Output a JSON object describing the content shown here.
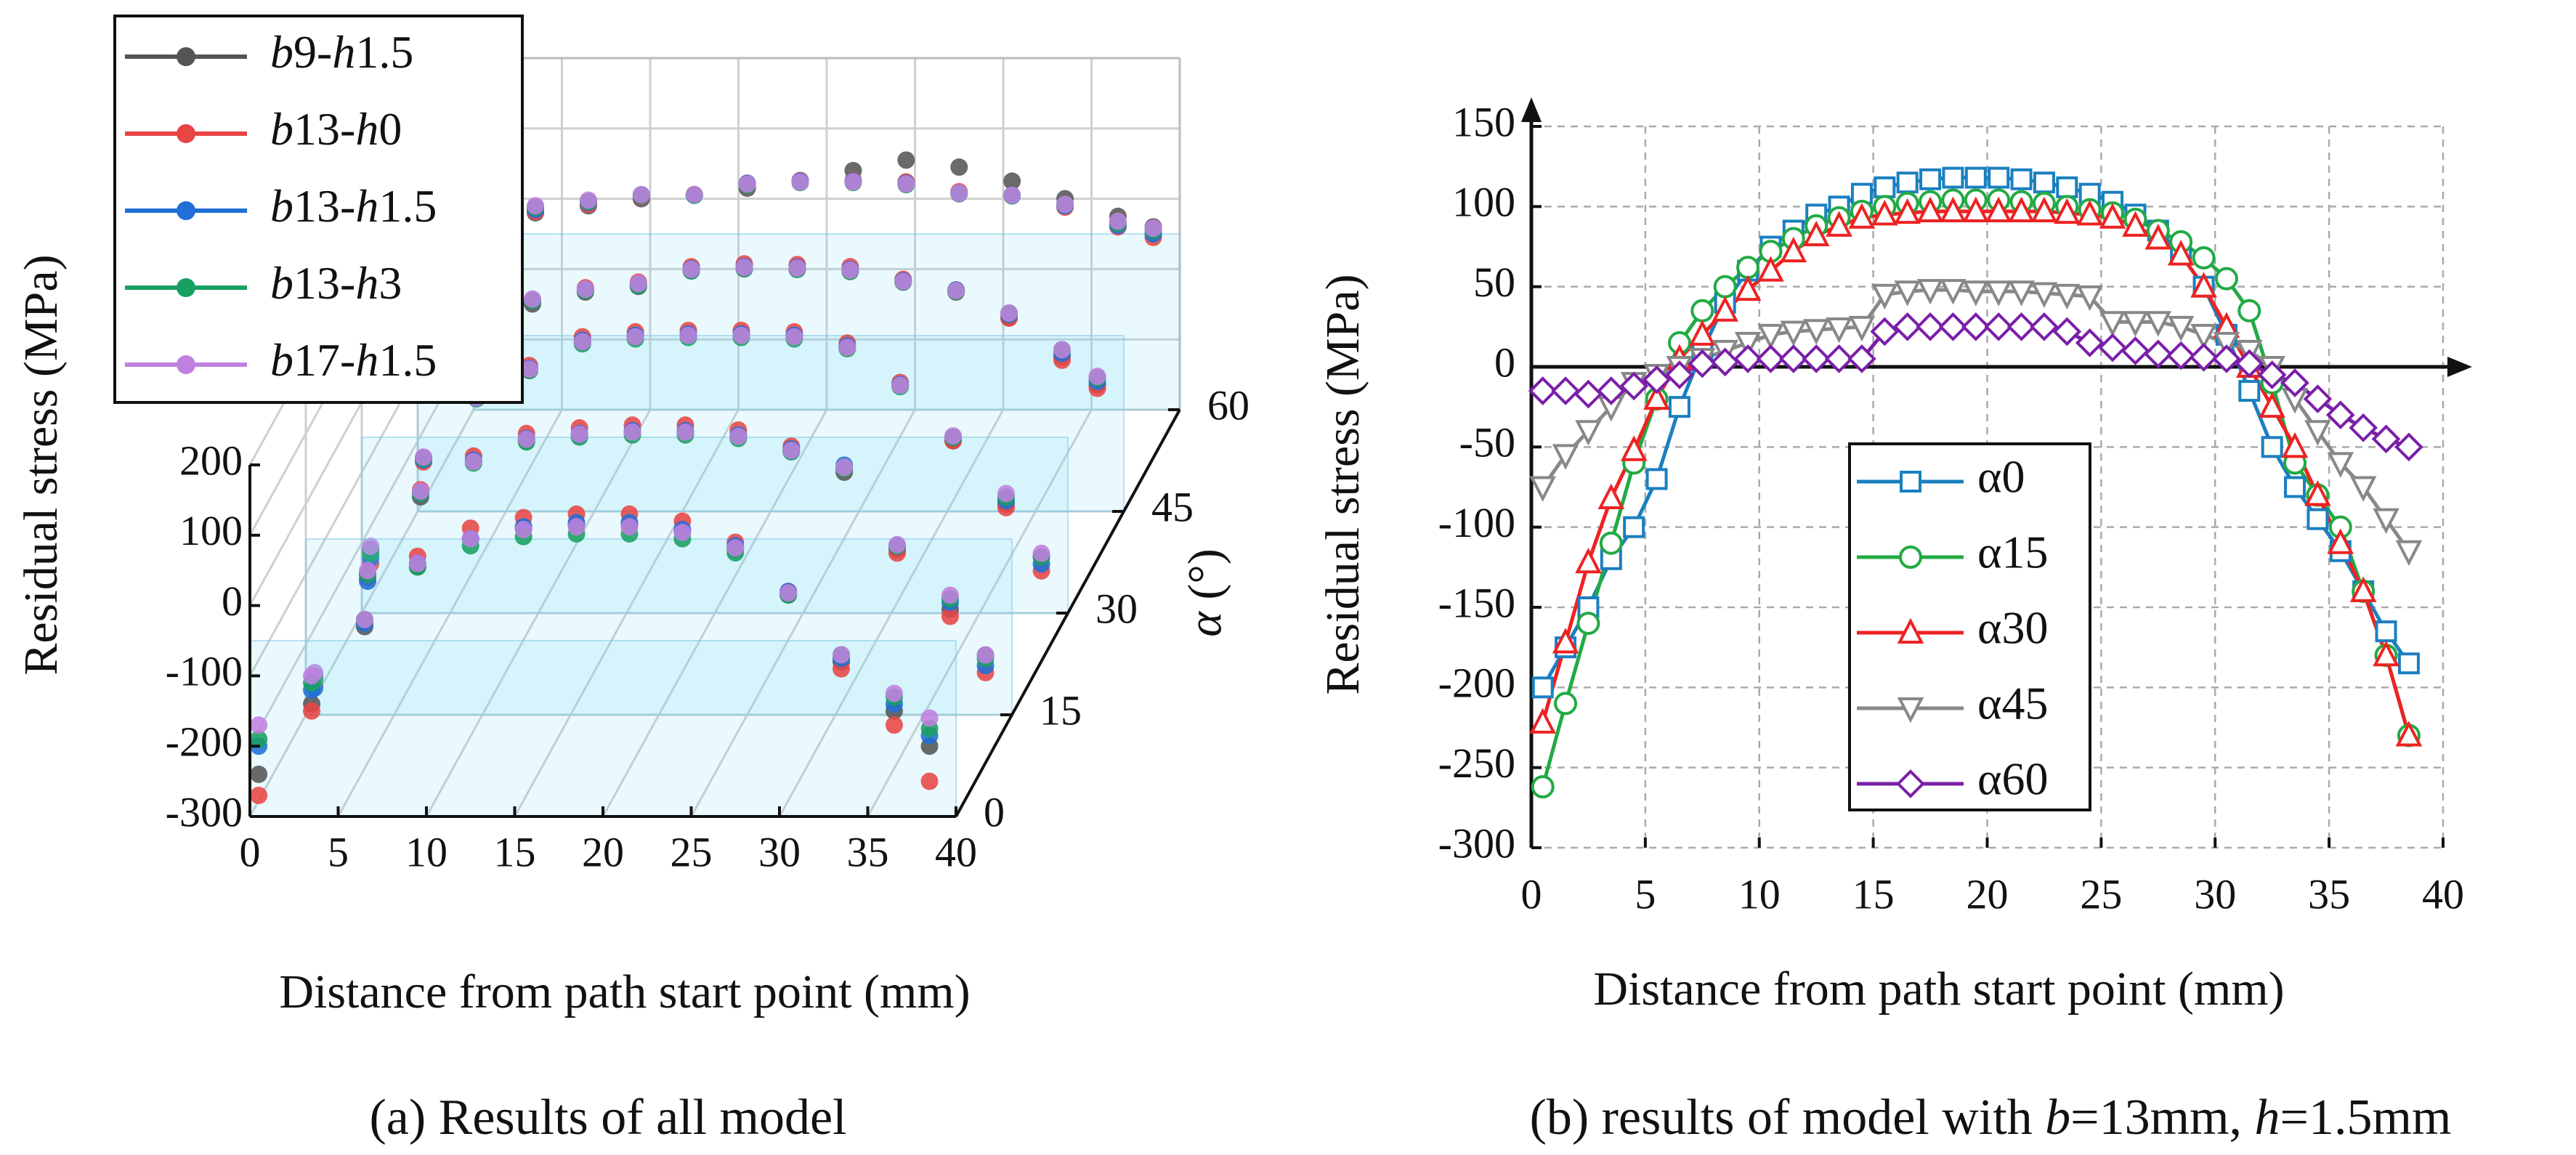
{
  "chart_data": [
    {
      "type": "scatter3d",
      "caption": "(a) Results of all model",
      "xlabel": "Distance from path start point (mm)",
      "ylabel": "Residual stress (MPa)",
      "zlabel": "α (°)",
      "x": [
        0.5,
        3.5,
        6.5,
        9.5,
        12.5,
        15.5,
        18.5,
        21.5,
        24.5,
        27.5,
        30.5,
        33.5,
        36.5,
        38.5
      ],
      "z": [
        0,
        15,
        30,
        45,
        60
      ],
      "xlim": [
        0,
        40
      ],
      "xticks": [
        0,
        5,
        10,
        15,
        20,
        25,
        30,
        35,
        40
      ],
      "ylim": [
        -300,
        200
      ],
      "yticks": [
        -300,
        -200,
        -100,
        0,
        100,
        200
      ],
      "zlim": [
        0,
        60
      ],
      "zticks": [
        0,
        15,
        30,
        45,
        60
      ],
      "grid": true,
      "legend": "upper left",
      "series": [
        {
          "name": "b9-h1.5",
          "color": "#555555",
          "values": [
            [
              -240,
              -140,
              -30,
              55,
              95,
              110,
              115,
              115,
              105,
              80,
              15,
              -80,
              -150,
              -200
            ],
            [
              -245,
              -100,
              10,
              60,
              90,
              98,
              102,
              102,
              96,
              75,
              45,
              -65,
              -150,
              -215
            ],
            [
              -210,
              -80,
              5,
              45,
              85,
              93,
              96,
              96,
              94,
              78,
              25,
              -55,
              -145,
              -220
            ],
            [
              -80,
              -30,
              -5,
              12,
              20,
              42,
              45,
              45,
              42,
              26,
              12,
              -25,
              -80,
              -120
            ],
            [
              -30,
              -20,
              -10,
              0,
              5,
              15,
              25,
              40,
              55,
              45,
              25,
              0,
              -25,
              -40
            ]
          ]
        },
        {
          "name": "b13-h0",
          "color": "#e84545",
          "values": [
            [
              -270,
              -150,
              -20,
              70,
              110,
              125,
              130,
              130,
              120,
              90,
              20,
              -90,
              -170,
              -250
            ],
            [
              -260,
              -105,
              20,
              68,
              100,
              108,
              112,
              112,
              105,
              82,
              50,
              -70,
              -160,
              -240
            ],
            [
              -230,
              -85,
              8,
              52,
              93,
              100,
              102,
              102,
              100,
              84,
              28,
              -55,
              -150,
              -240
            ],
            [
              -85,
              -30,
              0,
              18,
              26,
              48,
              52,
              51,
              48,
              30,
              15,
              -25,
              -85,
              -125
            ],
            [
              -20,
              -18,
              -8,
              4,
              6,
              22,
              26,
              26,
              24,
              10,
              5,
              -12,
              -40,
              -55
            ]
          ]
        },
        {
          "name": "b13-h1.5",
          "color": "#1f6fd6",
          "values": [
            [
              -200,
              -120,
              -25,
              60,
              95,
              112,
              118,
              118,
              108,
              85,
              20,
              -75,
              -140,
              -185
            ],
            [
              -262,
              -110,
              15,
              62,
              93,
              100,
              104,
              104,
              98,
              78,
              55,
              -60,
              -140,
              -230
            ],
            [
              -222,
              -82,
              5,
              48,
              88,
              95,
              97,
              97,
              95,
              80,
              25,
              -50,
              -140,
              -230
            ],
            [
              -75,
              -25,
              0,
              15,
              23,
              45,
              48,
              47,
              44,
              28,
              15,
              -20,
              -75,
              -115
            ],
            [
              -15,
              -15,
              -5,
              5,
              5,
              22,
              25,
              25,
              22,
              8,
              5,
              -10,
              -38,
              -50
            ]
          ]
        },
        {
          "name": "b13-h3",
          "color": "#18a060",
          "values": [
            [
              -190,
              -110,
              -20,
              55,
              85,
              98,
              102,
              102,
              95,
              75,
              15,
              -70,
              -130,
              -175
            ],
            [
              -250,
              -100,
              15,
              58,
              88,
              95,
              98,
              98,
              93,
              74,
              50,
              -60,
              -135,
              -220
            ],
            [
              -215,
              -80,
              5,
              45,
              83,
              90,
              92,
              92,
              90,
              76,
              22,
              -50,
              -135,
              -220
            ],
            [
              -70,
              -22,
              0,
              14,
              21,
              42,
              45,
              44,
              41,
              26,
              13,
              -18,
              -70,
              -110
            ],
            [
              -12,
              -12,
              -4,
              5,
              5,
              20,
              23,
              23,
              20,
              7,
              4,
              -8,
              -35,
              -45
            ]
          ]
        },
        {
          "name": "b17-h1.5",
          "color": "#c080e0",
          "values": [
            [
              -170,
              -100,
              -20,
              60,
              95,
              108,
              112,
              112,
              104,
              82,
              18,
              -70,
              -125,
              -160
            ],
            [
              -240,
              -95,
              18,
              60,
              92,
              99,
              102,
              102,
              96,
              76,
              52,
              -58,
              -130,
              -215
            ],
            [
              -205,
              -78,
              6,
              47,
              86,
              93,
              95,
              95,
              93,
              78,
              24,
              -48,
              -130,
              -215
            ],
            [
              -70,
              -22,
              2,
              16,
              24,
              44,
              47,
              46,
              43,
              27,
              14,
              -18,
              -70,
              -108
            ],
            [
              -10,
              -10,
              -2,
              6,
              6,
              21,
              24,
              24,
              21,
              8,
              5,
              -8,
              -32,
              -42
            ]
          ]
        }
      ]
    },
    {
      "type": "line",
      "caption": "(b) results of model with b=13mm, h=1.5mm",
      "xlabel": "Distance from path start point (mm)",
      "ylabel": "Residual stress (MPa)",
      "x": [
        0.5,
        1.5,
        2.5,
        3.5,
        4.5,
        5.5,
        6.5,
        7.5,
        8.5,
        9.5,
        10.5,
        11.5,
        12.5,
        13.5,
        14.5,
        15.5,
        16.5,
        17.5,
        18.5,
        19.5,
        20.5,
        21.5,
        22.5,
        23.5,
        24.5,
        25.5,
        26.5,
        27.5,
        28.5,
        29.5,
        30.5,
        31.5,
        32.5,
        33.5,
        34.5,
        35.5,
        36.5,
        37.5,
        38.5
      ],
      "xlim": [
        0,
        40
      ],
      "xticks": [
        0,
        5,
        10,
        15,
        20,
        25,
        30,
        35,
        40
      ],
      "ylim": [
        -300,
        150
      ],
      "yticks": [
        -300,
        -250,
        -200,
        -150,
        -100,
        -50,
        0,
        50,
        100,
        150
      ],
      "grid": true,
      "legend": "lower center",
      "series": [
        {
          "name": "α0",
          "color": "#1a7fc0",
          "marker": "square",
          "values": [
            -200,
            -175,
            -150,
            -120,
            -100,
            -70,
            -25,
            10,
            40,
            60,
            75,
            85,
            95,
            100,
            108,
            112,
            115,
            117,
            118,
            118,
            118,
            117,
            115,
            112,
            108,
            103,
            95,
            85,
            70,
            50,
            20,
            -15,
            -50,
            -75,
            -95,
            -115,
            -140,
            -165,
            -185
          ]
        },
        {
          "name": "α15",
          "color": "#22aa44",
          "marker": "circle",
          "values": [
            -262,
            -210,
            -160,
            -110,
            -60,
            -20,
            15,
            35,
            50,
            62,
            72,
            80,
            88,
            93,
            97,
            100,
            102,
            103,
            104,
            104,
            104,
            103,
            102,
            100,
            98,
            96,
            92,
            85,
            78,
            68,
            55,
            35,
            -10,
            -60,
            -80,
            -100,
            -140,
            -180,
            -230
          ]
        },
        {
          "name": "α30",
          "color": "#ee2222",
          "marker": "triangle",
          "values": [
            -222,
            -172,
            -122,
            -82,
            -52,
            -20,
            5,
            20,
            35,
            48,
            60,
            72,
            82,
            88,
            93,
            95,
            96,
            97,
            97,
            97,
            97,
            97,
            97,
            96,
            95,
            93,
            88,
            80,
            70,
            50,
            25,
            0,
            -25,
            -50,
            -80,
            -110,
            -140,
            -180,
            -230
          ]
        },
        {
          "name": "α45",
          "color": "#888888",
          "marker": "triangle-down",
          "values": [
            -75,
            -55,
            -40,
            -25,
            -10,
            -5,
            0,
            5,
            10,
            15,
            20,
            22,
            23,
            24,
            25,
            45,
            47,
            48,
            48,
            47,
            47,
            47,
            46,
            45,
            44,
            28,
            28,
            28,
            25,
            20,
            15,
            10,
            0,
            -20,
            -40,
            -60,
            -75,
            -95,
            -115
          ]
        },
        {
          "name": "α60",
          "color": "#7a1fa8",
          "marker": "diamond",
          "values": [
            -15,
            -15,
            -17,
            -15,
            -12,
            -8,
            -5,
            2,
            3,
            5,
            5,
            5,
            5,
            5,
            5,
            22,
            25,
            25,
            25,
            25,
            25,
            25,
            25,
            22,
            15,
            12,
            10,
            8,
            7,
            6,
            5,
            2,
            -5,
            -10,
            -20,
            -30,
            -38,
            -45,
            -50
          ]
        }
      ]
    }
  ]
}
